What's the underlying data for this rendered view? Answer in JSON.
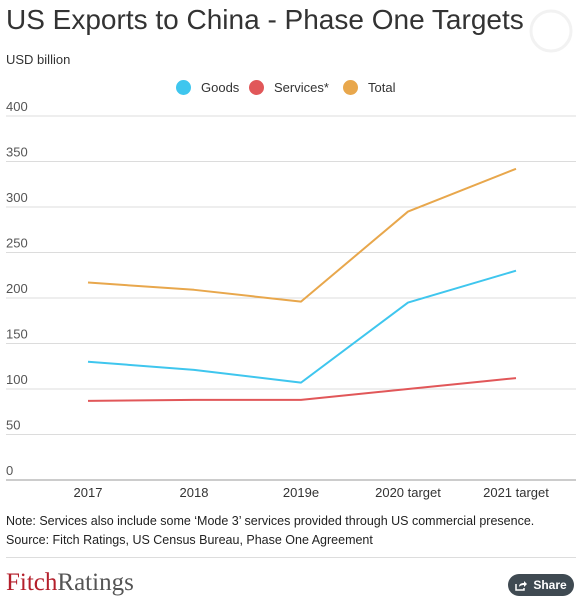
{
  "title": "US Exports to China - Phase One Targets",
  "unit_label": "USD billion",
  "note": "Note: Services also include some ‘Mode 3’ services provided through US commercial presence.",
  "source": "Source: Fitch Ratings, US Census Bureau, Phase One Agreement",
  "logo": {
    "part1": "Fitch",
    "part2": "Ratings"
  },
  "share": {
    "label": "Share",
    "icon": "share-icon"
  },
  "chart_data": {
    "type": "line",
    "categories": [
      "2017",
      "2018",
      "2019e",
      "2020 target",
      "2021 target"
    ],
    "series": [
      {
        "name": "Goods",
        "color": "#3fc6ee",
        "values": [
          130,
          121,
          107,
          195,
          230
        ]
      },
      {
        "name": "Services*",
        "color": "#e15759",
        "values": [
          87,
          88,
          88,
          100,
          112
        ]
      },
      {
        "name": "Total",
        "color": "#e8a74c",
        "values": [
          217,
          209,
          196,
          295,
          342
        ]
      }
    ],
    "y_ticks": [
      0,
      50,
      100,
      150,
      200,
      250,
      300,
      350,
      400
    ],
    "ylim": [
      0,
      400
    ],
    "grid": true,
    "legend_position": "top-center"
  }
}
